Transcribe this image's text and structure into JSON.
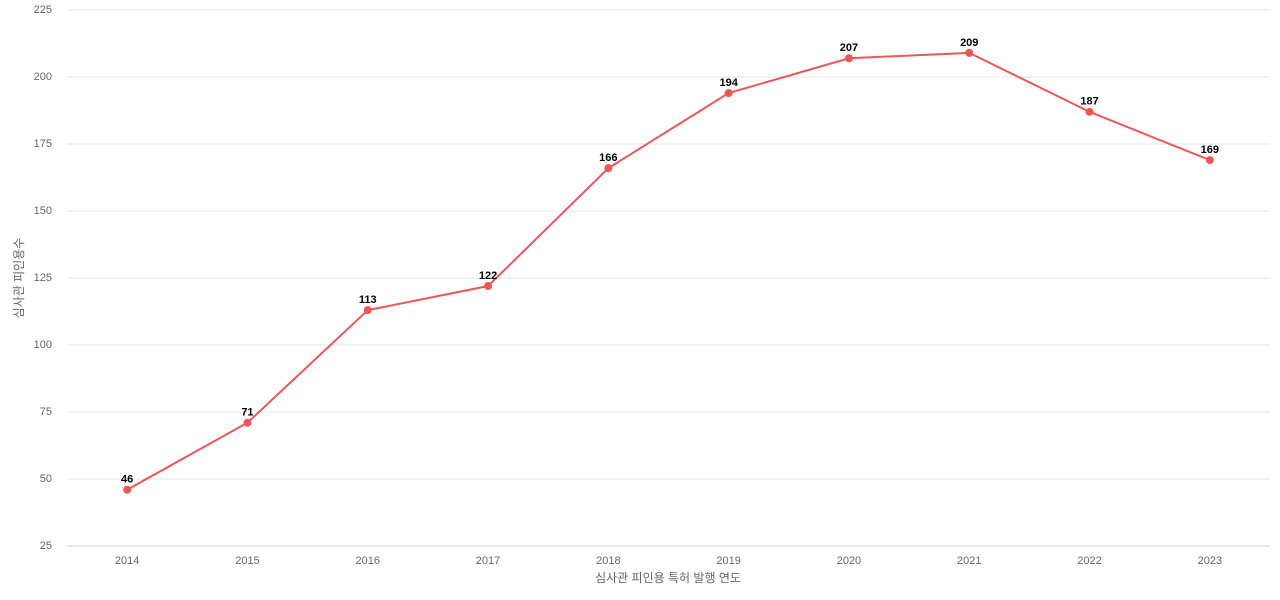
{
  "chart_data": {
    "type": "line",
    "x_label": "심사관 피인용 특허 발행 연도",
    "y_label": "심사관 피인용수",
    "categories": [
      "2014",
      "2015",
      "2016",
      "2017",
      "2018",
      "2019",
      "2020",
      "2021",
      "2022",
      "2023"
    ],
    "series": [
      {
        "color": "#eb5757",
        "values": [
          46,
          71,
          113,
          122,
          166,
          194,
          207,
          209,
          187,
          169
        ]
      }
    ],
    "ylim": [
      25,
      225
    ],
    "yticks": [
      25,
      50,
      75,
      100,
      125,
      150,
      175,
      200,
      225
    ],
    "grid": true
  }
}
